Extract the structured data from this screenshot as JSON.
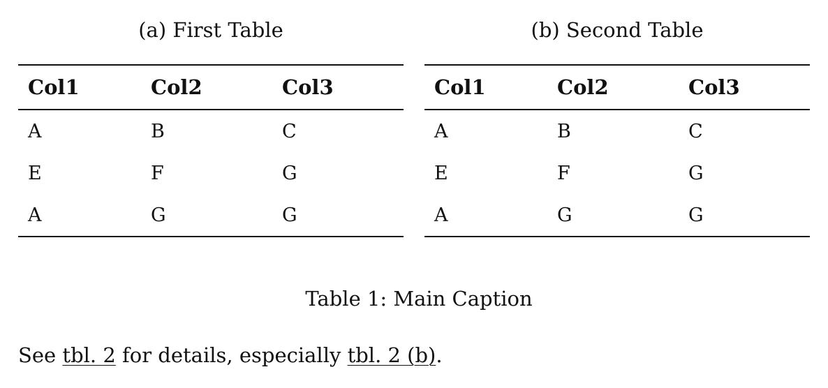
{
  "figure": {
    "subtables": [
      {
        "caption": "(a) First Table",
        "headers": [
          "Col1",
          "Col2",
          "Col3"
        ],
        "rows": [
          [
            "A",
            "B",
            "C"
          ],
          [
            "E",
            "F",
            "G"
          ],
          [
            "A",
            "G",
            "G"
          ]
        ]
      },
      {
        "caption": "(b) Second Table",
        "headers": [
          "Col1",
          "Col2",
          "Col3"
        ],
        "rows": [
          [
            "A",
            "B",
            "C"
          ],
          [
            "E",
            "F",
            "G"
          ],
          [
            "A",
            "G",
            "G"
          ]
        ]
      }
    ],
    "main_caption": "Table 1: Main Caption"
  },
  "paragraph": {
    "prefix": "See ",
    "link1": "tbl. 2",
    "middle": " for details, especially ",
    "link2": "tbl. 2 (b)",
    "suffix": "."
  }
}
